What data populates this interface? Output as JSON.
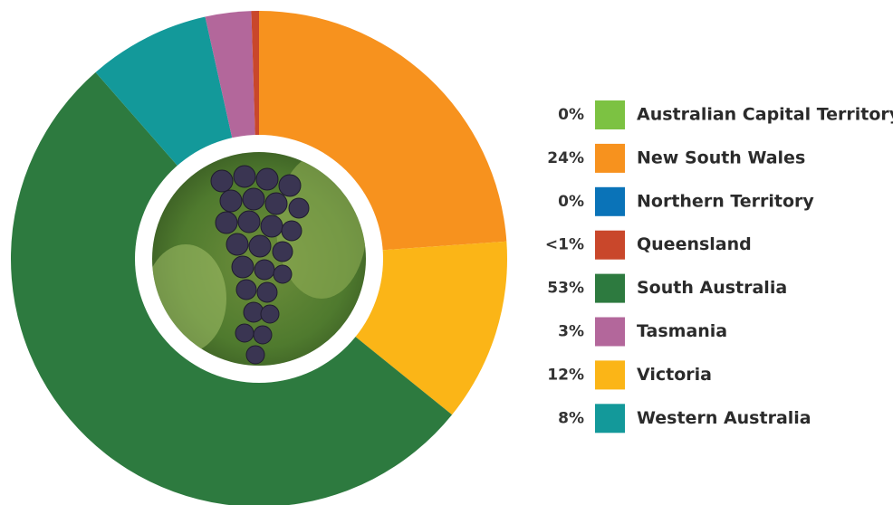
{
  "chart_data": {
    "type": "donut",
    "categories": [
      "Australian Capital Territory",
      "New South Wales",
      "Northern Territory",
      "Queensland",
      "South Australia",
      "Tasmania",
      "Victoria",
      "Western Australia"
    ],
    "values": [
      0,
      24,
      0,
      0.5,
      53,
      3,
      12,
      8
    ],
    "value_labels": [
      "0%",
      "24%",
      "0%",
      "<1%",
      "53%",
      "3%",
      "12%",
      "8%"
    ],
    "colors": [
      "#7cc242",
      "#f7921e",
      "#0a73b8",
      "#c9472b",
      "#2d7a3f",
      "#b3679b",
      "#fbb517",
      "#13999a"
    ]
  }
}
